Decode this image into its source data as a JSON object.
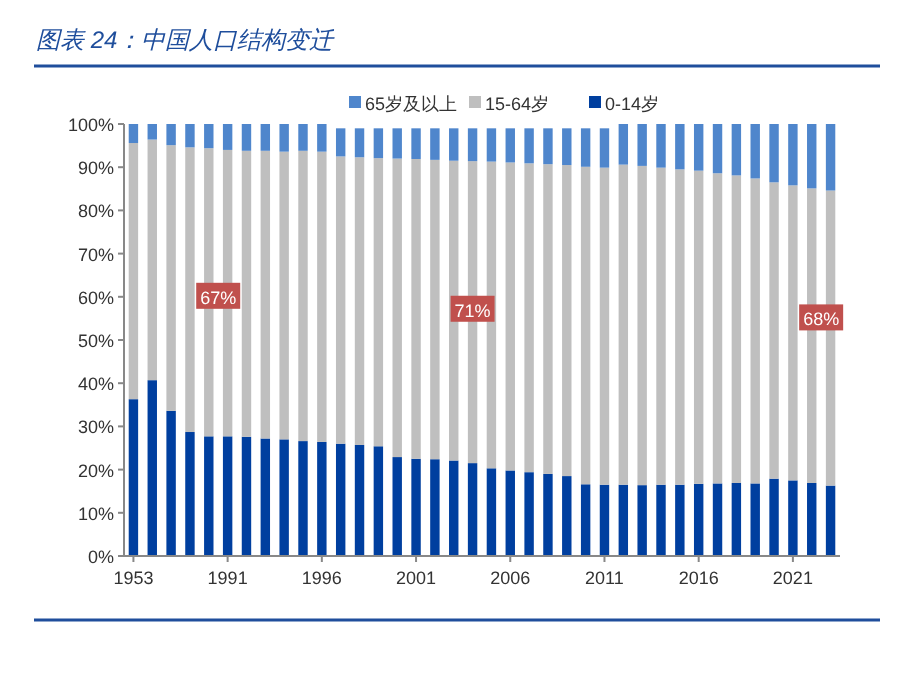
{
  "chart_data": {
    "type": "bar",
    "stacked": true,
    "title": "图表 24：中国人口结构变迁",
    "categories": [
      "1953",
      null,
      null,
      null,
      null,
      "1991",
      null,
      null,
      null,
      null,
      "1996",
      null,
      null,
      null,
      null,
      "2001",
      null,
      null,
      null,
      null,
      "2006",
      null,
      null,
      null,
      null,
      "2011",
      null,
      null,
      null,
      null,
      "2016",
      null,
      null,
      null,
      null,
      "2021",
      null,
      null
    ],
    "series": [
      {
        "name": "0-14岁",
        "color": "#003f9f",
        "values": [
          36.3,
          40.7,
          33.6,
          28.7,
          27.7,
          27.7,
          27.6,
          27.2,
          27.0,
          26.6,
          26.4,
          26.0,
          25.7,
          25.4,
          22.9,
          22.5,
          22.4,
          22.1,
          21.5,
          20.3,
          19.8,
          19.4,
          19.0,
          18.5,
          16.6,
          16.5,
          16.5,
          16.4,
          16.5,
          16.5,
          16.7,
          16.8,
          16.9,
          16.8,
          17.9,
          17.5,
          16.9,
          16.3
        ]
      },
      {
        "name": "15-64岁",
        "color": "#bfbfbf",
        "values": [
          59.3,
          55.7,
          61.5,
          65.9,
          66.7,
          66.3,
          66.2,
          66.6,
          66.6,
          67.2,
          67.2,
          66.5,
          66.6,
          66.7,
          69.1,
          69.4,
          69.3,
          69.4,
          69.9,
          71.0,
          71.3,
          71.5,
          71.7,
          72.0,
          73.5,
          73.4,
          74.1,
          73.9,
          73.4,
          73.0,
          72.5,
          71.8,
          71.2,
          70.6,
          68.6,
          68.3,
          68.2,
          68.3
        ]
      },
      {
        "name": "65岁及以上",
        "color": "#4f86cc",
        "values": [
          4.4,
          3.6,
          4.9,
          5.4,
          5.6,
          6.0,
          6.2,
          6.2,
          6.4,
          6.2,
          6.4,
          6.5,
          6.7,
          6.9,
          7.0,
          7.1,
          7.3,
          7.5,
          7.6,
          7.7,
          7.9,
          8.1,
          8.3,
          8.5,
          8.9,
          9.1,
          9.4,
          9.7,
          10.1,
          10.5,
          10.8,
          11.4,
          11.9,
          12.6,
          13.5,
          14.2,
          14.9,
          15.4
        ]
      }
    ],
    "ylim": [
      0,
      100
    ],
    "yticks": [
      {
        "value": 0,
        "label": "0%"
      },
      {
        "value": 10,
        "label": "10%"
      },
      {
        "value": 20,
        "label": "20%"
      },
      {
        "value": 30,
        "label": "30%"
      },
      {
        "value": 40,
        "label": "40%"
      },
      {
        "value": 50,
        "label": "50%"
      },
      {
        "value": 60,
        "label": "60%"
      },
      {
        "value": 70,
        "label": "70%"
      },
      {
        "value": 80,
        "label": "80%"
      },
      {
        "value": 90,
        "label": "90%"
      },
      {
        "value": 100,
        "label": "100%"
      }
    ],
    "grid": false,
    "legend": "top",
    "annotations": [
      {
        "text": "67%",
        "y": 60
      },
      {
        "text": "71%",
        "y": 57
      },
      {
        "text": "68%",
        "y": 55
      }
    ]
  }
}
